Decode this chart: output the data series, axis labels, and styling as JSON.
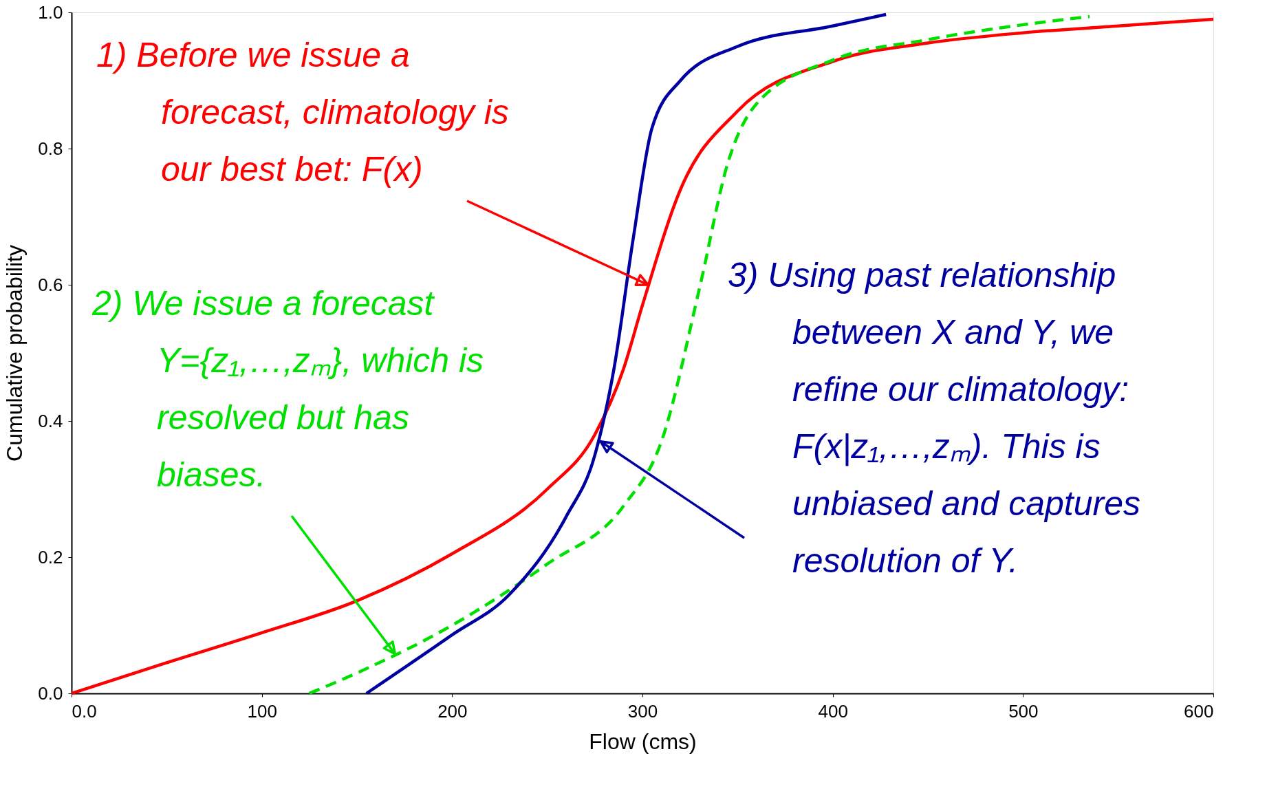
{
  "chart_data": {
    "type": "line",
    "xlabel": "Flow (cms)",
    "ylabel": "Cumulative probability",
    "xlim": [
      0,
      600
    ],
    "ylim": [
      0,
      1
    ],
    "xticks": [
      {
        "value": 0,
        "label": "0.0"
      },
      100,
      200,
      300,
      400,
      500,
      600
    ],
    "yticks": [
      {
        "value": 0,
        "label": "0.0"
      },
      {
        "value": 0.2,
        "label": "0.2"
      },
      {
        "value": 0.4,
        "label": "0.4"
      },
      {
        "value": 0.6,
        "label": "0.6"
      },
      {
        "value": 0.8,
        "label": "0.8"
      },
      {
        "value": 1,
        "label": "1.0"
      }
    ],
    "grid": false,
    "marker": "none",
    "series": [
      {
        "color": "#ff0000",
        "line_style": "solid",
        "x": [
          0,
          50,
          100,
          150,
          200,
          250,
          275,
          290,
          300,
          320,
          350,
          400,
          450,
          500,
          550,
          600
        ],
        "values": [
          0,
          0.045,
          0.089,
          0.136,
          0.205,
          0.3,
          0.38,
          0.476,
          0.57,
          0.74,
          0.855,
          0.928,
          0.955,
          0.97,
          0.98,
          0.99
        ]
      },
      {
        "color": "#00e000",
        "line_style": "dashed",
        "x": [
          125,
          150,
          200,
          250,
          290,
          310,
          330,
          345,
          360,
          400,
          450,
          535
        ],
        "values": [
          0,
          0.03,
          0.1,
          0.19,
          0.275,
          0.37,
          0.595,
          0.78,
          0.866,
          0.93,
          0.96,
          0.994
        ]
      },
      {
        "color": "#0000a0",
        "line_style": "solid",
        "x": [
          155,
          200,
          230,
          260,
          275,
          285,
          295,
          305,
          320,
          350,
          400,
          428
        ],
        "values": [
          0,
          0.086,
          0.145,
          0.26,
          0.35,
          0.476,
          0.665,
          0.83,
          0.9,
          0.95,
          0.98,
          0.997
        ]
      }
    ],
    "annotations": [
      {
        "text": "1)  Before we issue a\nforecast, climatology is\nour best bet: F(x)",
        "x": 303,
        "y": 0.6
      },
      {
        "text": "2)  We issue a forecast\nY={z₁,…,zₘ}, which is\nresolved but has\nbiases.",
        "x": 170,
        "y": 0.058
      },
      {
        "text": "3)  Using past relationship\nbetween X and Y, we\nrefine our climatology:\nF(x|z₁,…,zₘ). This is\nunbiased and captures\nresolution of Y.",
        "x": 278,
        "y": 0.37
      }
    ]
  }
}
